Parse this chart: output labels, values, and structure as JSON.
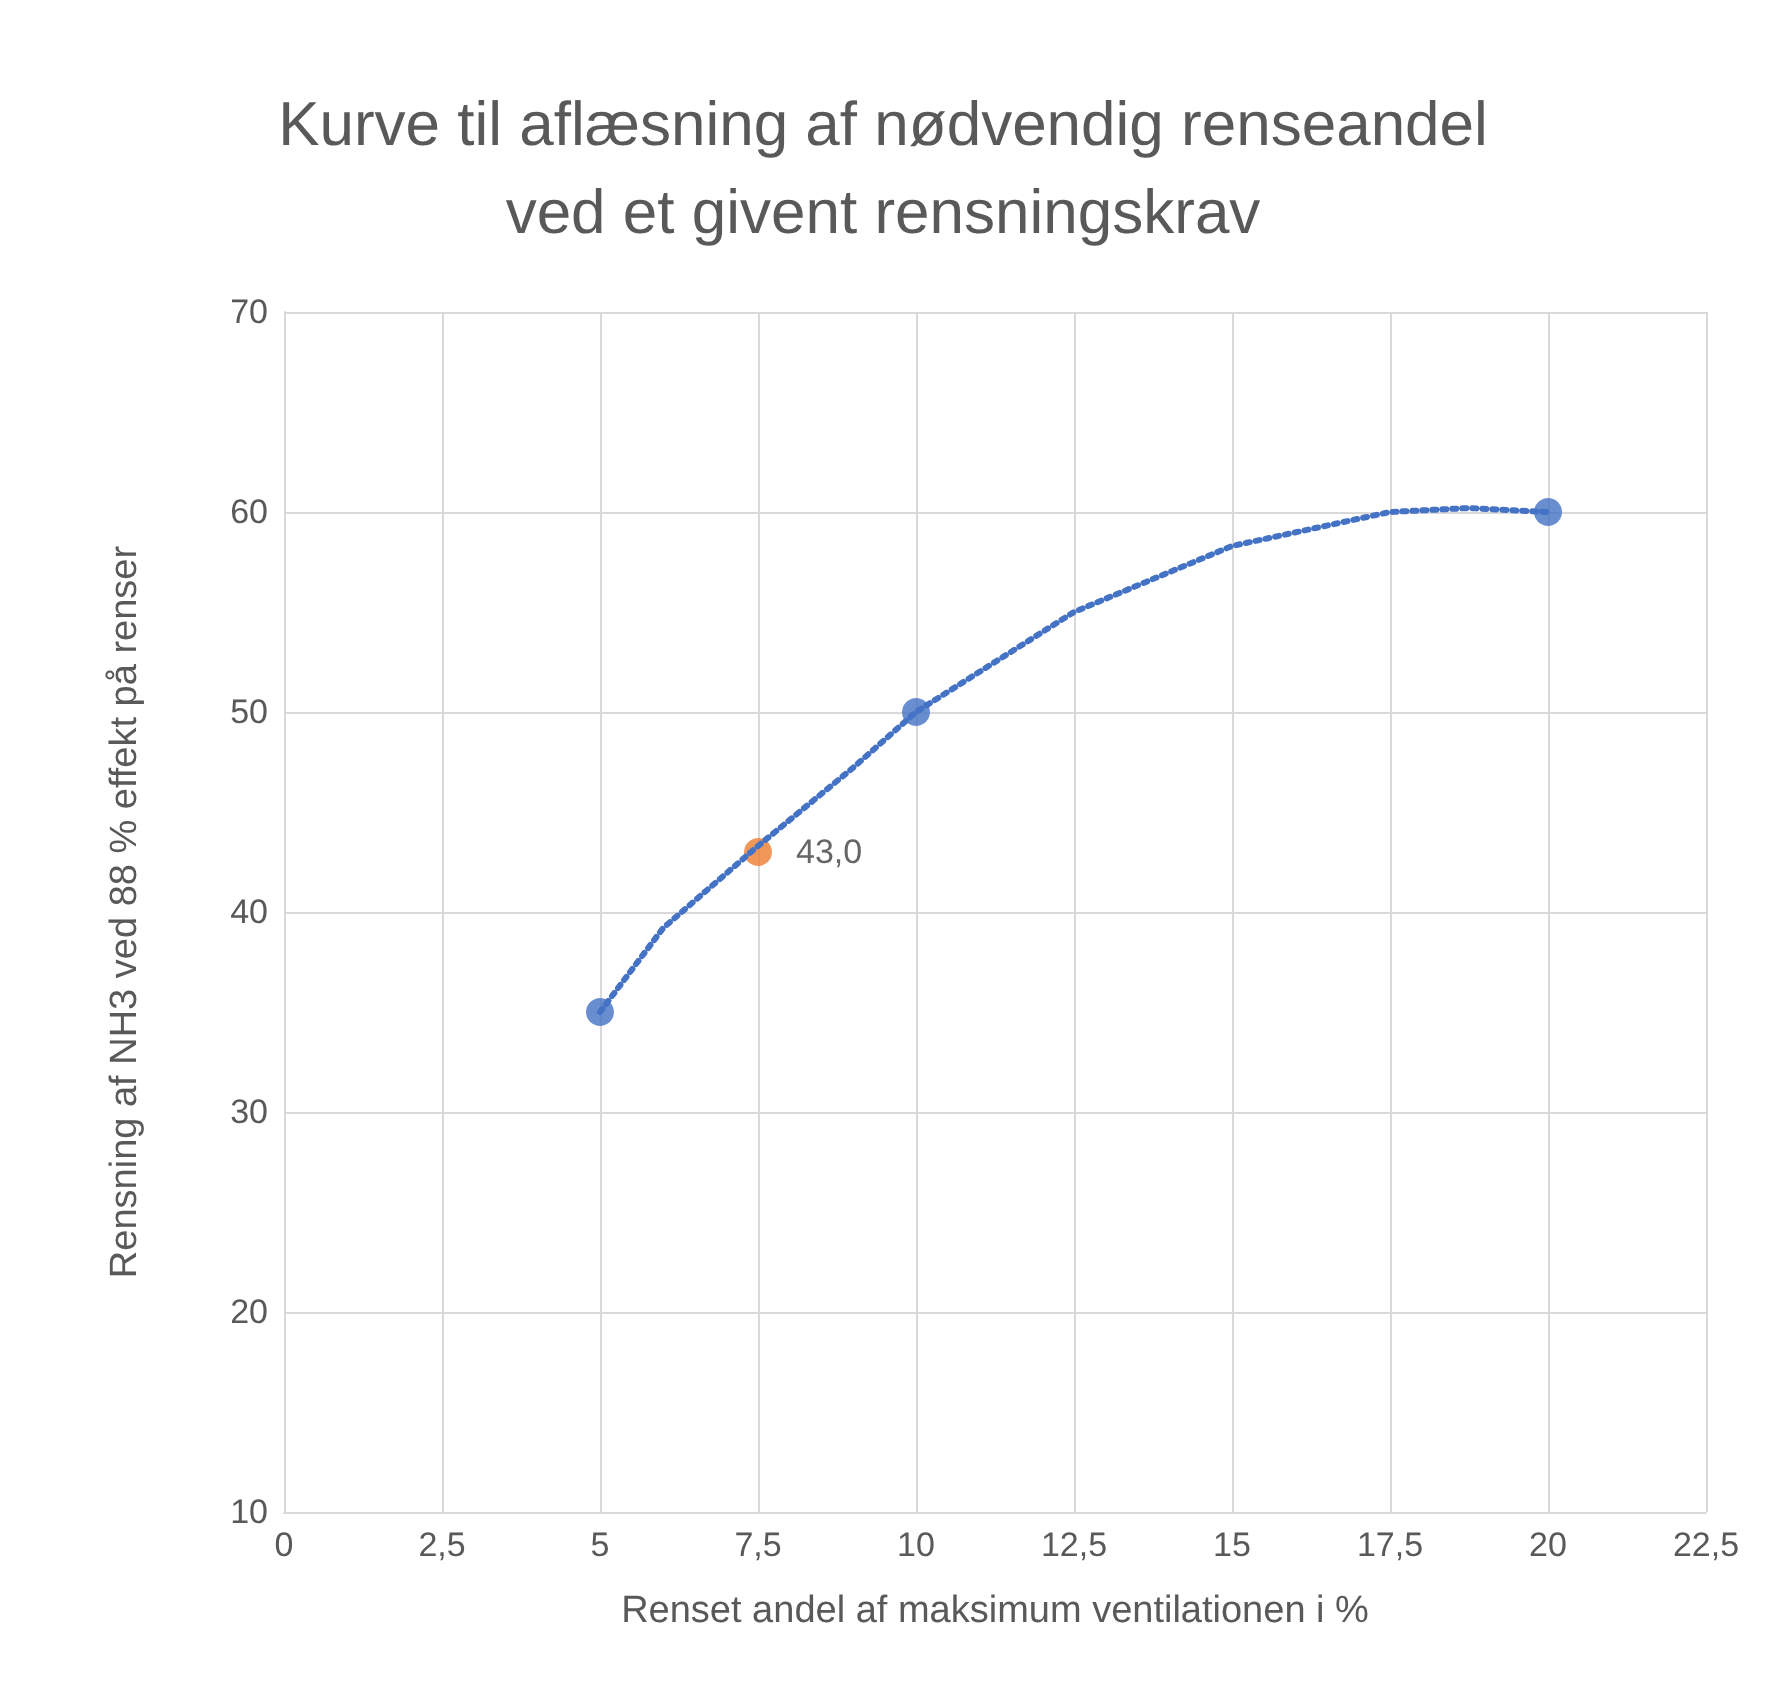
{
  "chart_data": {
    "type": "scatter",
    "title": "Kurve til aflæsning af nødvendig renseandel\nved et givent rensningskrav",
    "xlabel": "Renset andel af maksimum ventilationen i %",
    "ylabel": "Rensning af NH3 ved 88 % effekt på renser",
    "xlim": [
      0,
      22.5
    ],
    "xticks": [
      0,
      {
        "value": 2.5,
        "label": "2,5"
      },
      5,
      {
        "value": 7.5,
        "label": "7,5"
      },
      10,
      {
        "value": 12.5,
        "label": "12,5"
      },
      15,
      {
        "value": 17.5,
        "label": "17,5"
      },
      20,
      {
        "value": 22.5,
        "label": "22,5"
      }
    ],
    "ylim": [
      10,
      70
    ],
    "yticks": [
      10,
      20,
      30,
      40,
      50,
      60,
      70
    ],
    "grid": true,
    "marker": "circle",
    "series": [
      {
        "type": "line",
        "color": "#4472c4",
        "line_style": "dotted",
        "marker": "none",
        "x": [
          5,
          6,
          7.5,
          9,
          10,
          12.5,
          15,
          17.5,
          18.75,
          20
        ],
        "values": [
          35,
          39.2,
          43.3,
          47.2,
          50,
          55,
          58.3,
          60,
          60.2,
          60
        ]
      },
      {
        "color": "#4472c4",
        "x": [
          5,
          10,
          20
        ],
        "values": [
          35,
          50,
          60
        ]
      },
      {
        "color": "#ed7d31",
        "x": [
          7.5
        ],
        "values": [
          43.0
        ],
        "value_labels": [
          "43,0"
        ]
      }
    ]
  }
}
